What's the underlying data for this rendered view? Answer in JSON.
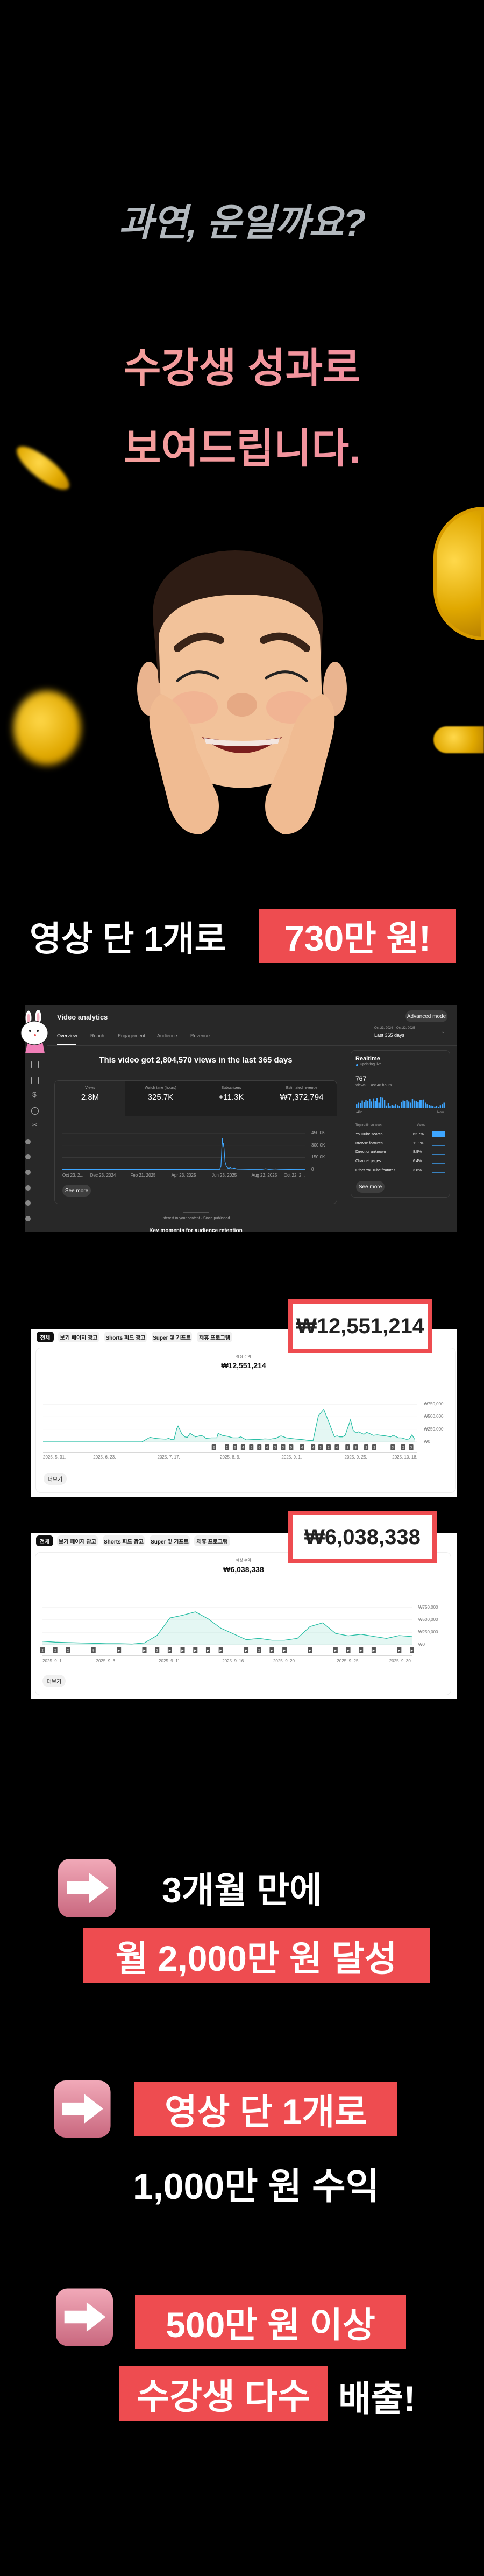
{
  "intro": {
    "question": "과연, 운일까요?",
    "line1": "수강생 성과로",
    "line2": "보여드립니다."
  },
  "banner": {
    "text": "영상 단 1개로",
    "highlight": "730만 원!"
  },
  "analytics": {
    "title": "Video analytics",
    "advanced_mode": "Advanced mode",
    "tabs": [
      "Overview",
      "Reach",
      "Engagement",
      "Audience",
      "Revenue"
    ],
    "active_tab": "Overview",
    "date_range": "Oct 23, 2024 – Oct 22, 2025",
    "date_label": "Last 365 days",
    "headline": "This video got 2,804,570 views in the last 365 days",
    "metrics": [
      {
        "label": "Views",
        "value": "2.8M"
      },
      {
        "label": "Watch time (hours)",
        "value": "325.7K"
      },
      {
        "label": "Subscribers",
        "value": "+11.3K"
      },
      {
        "label": "Estimated revenue",
        "value": "₩7,372,794"
      }
    ],
    "see_more": "See more",
    "realtime": {
      "title": "Realtime",
      "status": "Updating live",
      "count": "767",
      "period": "Views · Last 48 hours",
      "start": "-48h",
      "end": "Now",
      "bars": [
        30,
        40,
        35,
        55,
        45,
        60,
        50,
        65,
        48,
        70,
        52,
        75,
        40,
        80,
        78,
        60,
        20,
        35,
        15,
        25,
        20,
        30,
        22,
        18,
        45,
        55,
        50,
        60,
        48,
        40,
        65,
        55,
        50,
        45,
        60,
        58,
        62,
        40,
        30,
        25,
        20,
        15,
        12,
        18,
        10,
        22,
        30,
        40
      ],
      "sources_header": "Top traffic sources",
      "views_header": "Views",
      "sources": [
        {
          "name": "YouTube search",
          "pct": "62.7%"
        },
        {
          "name": "Browse features",
          "pct": "11.1%"
        },
        {
          "name": "Direct or unknown",
          "pct": "8.9%"
        },
        {
          "name": "Channel pages",
          "pct": "6.4%"
        },
        {
          "name": "Other YouTube features",
          "pct": "3.8%"
        }
      ],
      "see_more": "See more"
    },
    "footer_caption": "Interest in your content · Since published",
    "footer_heading": "Key moments for audience retention",
    "accent": "#3ea6ff"
  },
  "revenue_chips": [
    "전체",
    "보기 페이지 광고",
    "Shorts 피드 광고",
    "Super 및 기프트",
    "제휴 프로그램"
  ],
  "revenue1": {
    "highlight": "₩12,551,214",
    "label": "예상 수익",
    "total": "₩12,551,214",
    "more": "더보기"
  },
  "revenue2": {
    "highlight": "₩6,038,338",
    "label": "예상 수익",
    "total": "₩6,038,338",
    "more": "더보기"
  },
  "chart_data": [
    {
      "type": "line",
      "title": "Views",
      "x_unit": "days since Oct 23, 2024",
      "xticks": [
        "Oct 23, 2...",
        "Dec 23, 2024",
        "Feb 21, 2025",
        "Apr 23, 2025",
        "Jun 23, 2025",
        "Aug 22, 2025",
        "Oct 22, 2..."
      ],
      "xtick_days": [
        0,
        61,
        121,
        182,
        243,
        303,
        364
      ],
      "yticks": [
        "0",
        "150.0K",
        "300.0K",
        "450.0K"
      ],
      "ylim": [
        0,
        450000
      ],
      "points": [
        [
          0,
          3000
        ],
        [
          200,
          3000
        ],
        [
          236,
          5000
        ],
        [
          238,
          40000
        ],
        [
          240,
          390000
        ],
        [
          241,
          280000
        ],
        [
          242,
          330000
        ],
        [
          244,
          100000
        ],
        [
          246,
          40000
        ],
        [
          248,
          20000
        ],
        [
          250,
          15000
        ],
        [
          252,
          25000
        ],
        [
          254,
          10000
        ],
        [
          258,
          18000
        ],
        [
          262,
          8000
        ],
        [
          280,
          5000
        ],
        [
          300,
          5000
        ],
        [
          305,
          12000
        ],
        [
          310,
          4000
        ],
        [
          320,
          10000
        ],
        [
          325,
          6000
        ],
        [
          340,
          4000
        ],
        [
          364,
          5000
        ]
      ],
      "color": "#3ea6ff"
    },
    {
      "type": "area",
      "title": "예상 수익",
      "x_unit": "days since 2025. 5. 31.",
      "xticks": [
        "2025. 5. 31.",
        "2025. 6. 23.",
        "2025. 7. 17.",
        "2025. 8. 9.",
        "2025. 9. 1.",
        "2025. 9. 25.",
        "2025. 10. 18."
      ],
      "xtick_days": [
        0,
        23,
        47,
        70,
        93,
        117,
        140
      ],
      "yticks": [
        "₩0",
        "₩250,000",
        "₩500,000",
        "₩750,000"
      ],
      "ylim": [
        0,
        750000
      ],
      "points": [
        [
          0,
          0
        ],
        [
          37,
          0
        ],
        [
          40,
          90000
        ],
        [
          42,
          70000
        ],
        [
          44,
          60000
        ],
        [
          46,
          55000
        ],
        [
          47,
          70000
        ],
        [
          48,
          45000
        ],
        [
          49,
          45000
        ],
        [
          50,
          260000
        ],
        [
          50.5,
          314000
        ],
        [
          52,
          150000
        ],
        [
          53,
          100000
        ],
        [
          54,
          90000
        ],
        [
          55,
          170000
        ],
        [
          57,
          100000
        ],
        [
          58,
          110000
        ],
        [
          59,
          130000
        ],
        [
          60,
          110000
        ],
        [
          61,
          70000
        ],
        [
          63,
          80000
        ],
        [
          65,
          80000
        ],
        [
          65.5,
          170000
        ],
        [
          67,
          130000
        ],
        [
          69,
          110000
        ],
        [
          71,
          80000
        ],
        [
          73,
          80000
        ],
        [
          74,
          100000
        ],
        [
          76,
          40000
        ],
        [
          78,
          45000
        ],
        [
          81,
          50000
        ],
        [
          83,
          60000
        ],
        [
          85,
          55000
        ],
        [
          87,
          70000
        ],
        [
          89,
          120000
        ],
        [
          91,
          80000
        ],
        [
          94,
          60000
        ],
        [
          97,
          45000
        ],
        [
          100,
          25000
        ],
        [
          101,
          25000
        ],
        [
          103,
          520000
        ],
        [
          105,
          650000
        ],
        [
          107,
          380000
        ],
        [
          109,
          100000
        ],
        [
          110,
          120000
        ],
        [
          111,
          100000
        ],
        [
          112,
          100000
        ],
        [
          113,
          130000
        ],
        [
          114.5,
          360000
        ],
        [
          115,
          440000
        ],
        [
          116,
          230000
        ],
        [
          117,
          180000
        ],
        [
          118,
          200000
        ],
        [
          120,
          150000
        ],
        [
          121,
          190000
        ],
        [
          122,
          170000
        ],
        [
          123.5,
          130000
        ],
        [
          125,
          140000
        ],
        [
          128,
          120000
        ],
        [
          130,
          100000
        ],
        [
          131,
          130000
        ],
        [
          133,
          80000
        ],
        [
          134,
          80000
        ],
        [
          136,
          50000
        ],
        [
          137,
          60000
        ],
        [
          138,
          140000
        ],
        [
          139,
          50000
        ]
      ],
      "markers": [
        [
          63.9,
          "2"
        ],
        [
          68.8,
          "2"
        ],
        [
          71.8,
          "6"
        ],
        [
          74.8,
          "4"
        ],
        [
          77.9,
          "5"
        ],
        [
          80.9,
          "6"
        ],
        [
          83.8,
          "4"
        ],
        [
          86.8,
          "3"
        ],
        [
          89.8,
          "3"
        ],
        [
          92.8,
          "5"
        ],
        [
          96.9,
          "4"
        ],
        [
          101,
          "4"
        ],
        [
          103.8,
          "3"
        ],
        [
          106.8,
          "2"
        ],
        [
          109.9,
          "4"
        ],
        [
          113.9,
          "2"
        ],
        [
          116.9,
          "3"
        ],
        [
          120.9,
          "2"
        ],
        [
          123.9,
          "2"
        ],
        [
          130.8,
          "3"
        ],
        [
          134.7,
          "2"
        ],
        [
          137.7,
          "3"
        ]
      ],
      "color": "#2bbfa6"
    },
    {
      "type": "area",
      "title": "예상 수익",
      "x_unit": "day of September 2025",
      "xticks": [
        "2025. 9. 1.",
        "2025. 9. 6.",
        "2025. 9. 11.",
        "2025. 9. 16.",
        "2025. 9. 20.",
        "2025. 9. 25.",
        "2025. 9. 30."
      ],
      "xtick_days": [
        1,
        6,
        11,
        16,
        20,
        25,
        30
      ],
      "yticks": [
        "₩0",
        "₩250,000",
        "₩500,000",
        "₩750,000"
      ],
      "ylim": [
        0,
        750000
      ],
      "points": [
        [
          1,
          69000
        ],
        [
          2,
          51000
        ],
        [
          3,
          43000
        ],
        [
          4,
          36000
        ],
        [
          5,
          29000
        ],
        [
          6,
          22000
        ],
        [
          7,
          22000
        ],
        [
          8,
          14000
        ],
        [
          9,
          36000
        ],
        [
          10,
          188000
        ],
        [
          11,
          540000
        ],
        [
          12,
          594000
        ],
        [
          13,
          663000
        ],
        [
          14,
          522000
        ],
        [
          15,
          333000
        ],
        [
          16,
          217000
        ],
        [
          17,
          101000
        ],
        [
          18,
          127000
        ],
        [
          19,
          91000
        ],
        [
          20,
          91000
        ],
        [
          21,
          127000
        ],
        [
          22,
          366000
        ],
        [
          23,
          442000
        ],
        [
          24,
          228000
        ],
        [
          25,
          178000
        ],
        [
          26,
          210000
        ],
        [
          27,
          167000
        ],
        [
          28,
          127000
        ],
        [
          29,
          185000
        ],
        [
          30,
          163000
        ]
      ],
      "markers": [
        [
          1,
          "2"
        ],
        [
          2,
          "2"
        ],
        [
          3,
          "2"
        ],
        [
          5,
          "8"
        ],
        [
          7,
          "▶"
        ],
        [
          9,
          "▶"
        ],
        [
          10,
          "2"
        ],
        [
          11,
          "▶"
        ],
        [
          12,
          "▶"
        ],
        [
          13,
          "▶"
        ],
        [
          14,
          "▶"
        ],
        [
          15,
          "▶"
        ],
        [
          17,
          "▶"
        ],
        [
          18,
          "2"
        ],
        [
          19,
          "▶"
        ],
        [
          20,
          "▶"
        ],
        [
          22,
          "▶"
        ],
        [
          24,
          "▶"
        ],
        [
          25,
          "▶"
        ],
        [
          26,
          "▶"
        ],
        [
          27,
          "▶"
        ],
        [
          29,
          "▶"
        ],
        [
          30,
          "▶"
        ]
      ],
      "color": "#2bbfa6"
    }
  ],
  "results": [
    {
      "line1": "3개월 만에",
      "line2": "월 2,000만 원 달성"
    },
    {
      "line1": "영상 단 1개로",
      "line2": "1,000만 원 수익"
    },
    {
      "line1": "500만 원 이상",
      "line2a": "수강생 다수",
      "line2b": "배출!"
    }
  ]
}
